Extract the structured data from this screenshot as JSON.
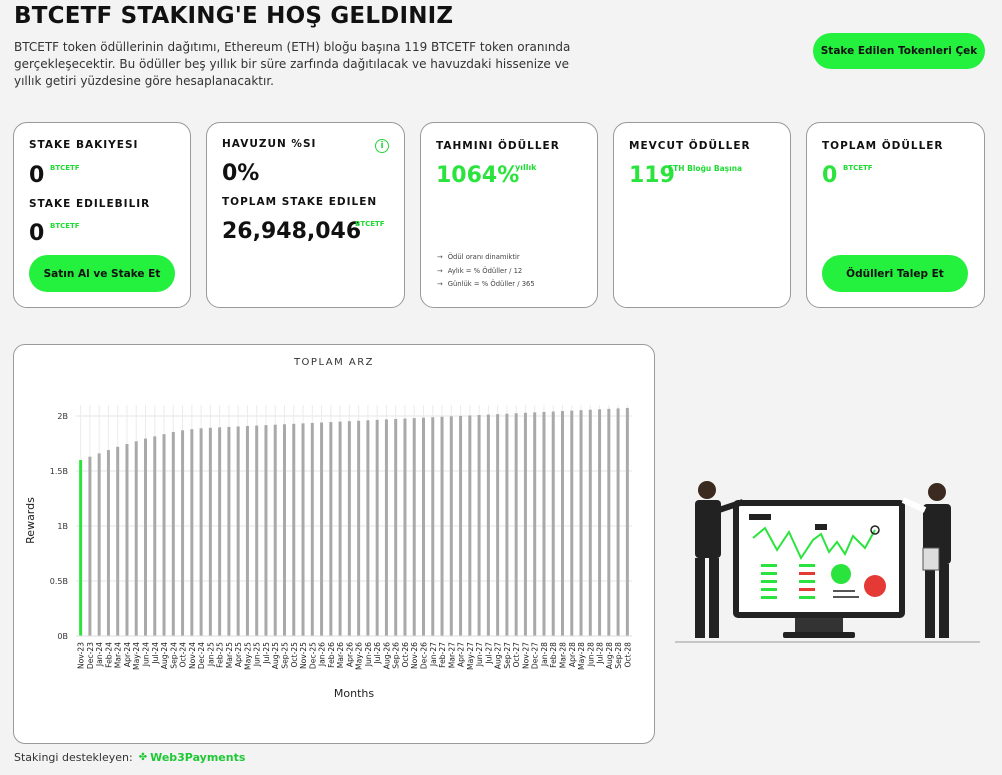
{
  "header": {
    "title": "BTCETF STAKING'E HOŞ GELDINIZ",
    "intro_line1": "BTCETF token ödüllerinin dağıtımı, Ethereum (ETH) bloğu başına 119 BTCETF token oranında",
    "intro_line2": "gerçekleşecektir. Bu ödüller beş yıllık bir süre zarfında dağıtılacak ve havuzdaki hissenize ve",
    "intro_line3": "yıllık getiri yüzdesine göre hesaplanacaktır.",
    "withdraw_label": "Stake Edilen Tokenleri Çek"
  },
  "cards": {
    "balance": {
      "label": "STAKE BAKIYESI",
      "value": "0",
      "unit": "BTCETF",
      "stakeable_label": "STAKE EDILEBILIR",
      "stakeable_value": "0",
      "stakeable_unit": "BTCETF",
      "button": "Satın Al ve Stake Et"
    },
    "pool": {
      "label": "HAVUZUN %SI",
      "value": "0%",
      "info_icon": "i",
      "total_label": "TOPLAM STAKE EDILEN",
      "total_value": "26,948,046",
      "total_unit": "BTCETF"
    },
    "estimated": {
      "label": "TAHMINI ÖDÜLLER",
      "value": "1064%",
      "unit": "yıllık",
      "notes": [
        "Ödül oranı dinamiktir",
        "Aylık = % Ödüller / 12",
        "Günlük = % Ödüller / 365"
      ]
    },
    "current": {
      "label": "MEVCUT ÖDÜLLER",
      "value": "119",
      "unit": "ETH Bloğu Başına"
    },
    "total": {
      "label": "TOPLAM ÖDÜLLER",
      "value": "0",
      "unit": "BTCETF",
      "button": "Ödülleri Talep Et"
    }
  },
  "chart_data": {
    "type": "bar",
    "title": "TOPLAM ARZ",
    "xlabel": "Months",
    "ylabel": "Rewards",
    "ylim": [
      0,
      2100000000
    ],
    "yticks": [
      "0B",
      "0.5B",
      "1B",
      "1.5B",
      "2B"
    ],
    "grid": true,
    "categories": [
      "Nov-23",
      "Dec-23",
      "Jan-24",
      "Feb-24",
      "Mar-24",
      "Apr-24",
      "May-24",
      "Jun-24",
      "Jul-24",
      "Aug-24",
      "Sep-24",
      "Oct-24",
      "Nov-24",
      "Dec-24",
      "Jan-25",
      "Feb-25",
      "Mar-25",
      "Apr-25",
      "May-25",
      "Jun-25",
      "Jul-25",
      "Aug-25",
      "Sep-25",
      "Oct-25",
      "Nov-25",
      "Dec-25",
      "Jan-26",
      "Feb-26",
      "Mar-26",
      "Apr-26",
      "May-26",
      "Jun-26",
      "Jul-26",
      "Aug-26",
      "Sep-26",
      "Oct-26",
      "Nov-26",
      "Dec-26",
      "Jan-27",
      "Feb-27",
      "Mar-27",
      "Apr-27",
      "May-27",
      "Jun-27",
      "Jul-27",
      "Aug-27",
      "Sep-27",
      "Oct-27",
      "Nov-27",
      "Dec-27",
      "Jan-28",
      "Feb-28",
      "Mar-28",
      "Apr-28",
      "May-28",
      "Jun-28",
      "Jul-28",
      "Aug-28",
      "Sep-28",
      "Oct-28"
    ],
    "values": [
      1600000000,
      1630000000,
      1660000000,
      1690000000,
      1720000000,
      1745000000,
      1770000000,
      1795000000,
      1815000000,
      1835000000,
      1855000000,
      1870000000,
      1880000000,
      1888000000,
      1893000000,
      1897000000,
      1901000000,
      1905000000,
      1909000000,
      1913000000,
      1917000000,
      1921000000,
      1925000000,
      1929000000,
      1933000000,
      1937000000,
      1941000000,
      1945000000,
      1949000000,
      1953000000,
      1957000000,
      1961000000,
      1965000000,
      1969000000,
      1973000000,
      1977000000,
      1981000000,
      1985000000,
      1989000000,
      1993000000,
      1997000000,
      2001000000,
      2005000000,
      2009000000,
      2013000000,
      2017000000,
      2021000000,
      2025000000,
      2029000000,
      2033000000,
      2037000000,
      2041000000,
      2045000000,
      2049000000,
      2053000000,
      2057000000,
      2061000000,
      2065000000,
      2069000000,
      2073000000
    ],
    "highlight_color": "#2ae43d",
    "bar_color": "#a9a9a9"
  },
  "footer": {
    "label": "Stakingi destekleyen:",
    "brand": "Web3Payments"
  },
  "colors": {
    "accent": "#24f03e",
    "background": "#f3f3f3",
    "card": "#ffffff"
  }
}
